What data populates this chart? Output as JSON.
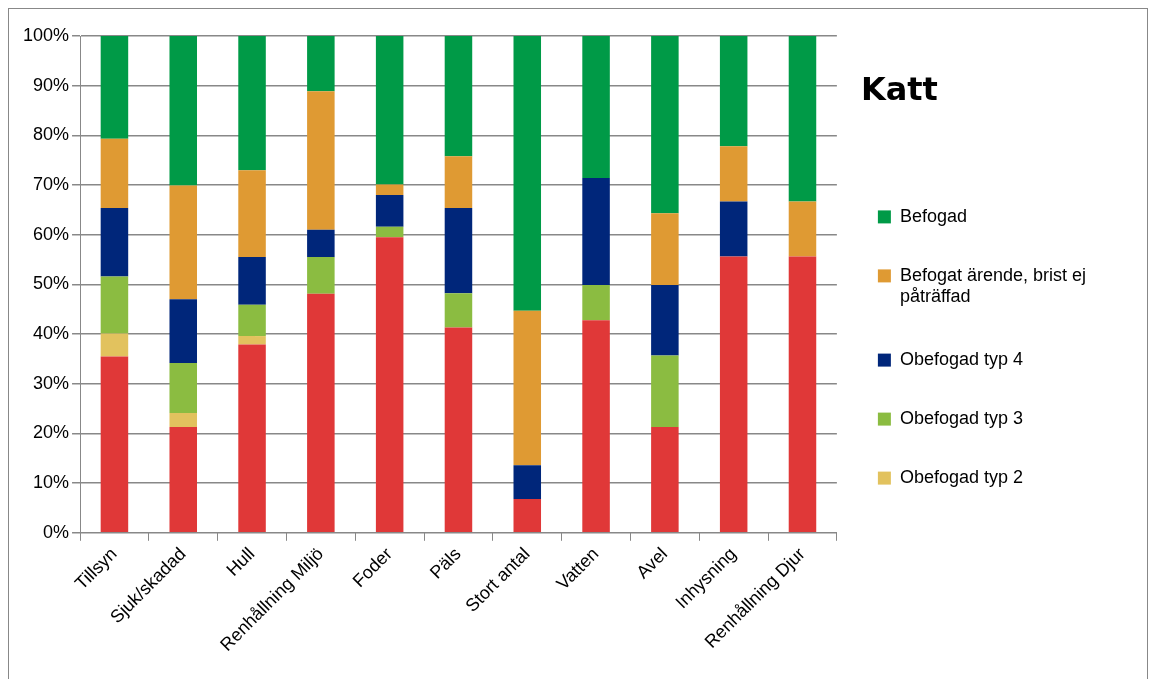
{
  "chart_data": {
    "type": "bar",
    "title": "Katt",
    "stacked": true,
    "categories": [
      "Tillsyn",
      "Sjuk/skadad",
      "Hull",
      "Renhållning Miljö",
      "Foder",
      "Päls",
      "Stort antal",
      "Vatten",
      "Avel",
      "Inhysning",
      "Renhållning Djur"
    ],
    "series": [
      {
        "color": "#e03838",
        "values": [
          35.5,
          21.3,
          37.9,
          48.1,
          59.5,
          41.3,
          6.8,
          42.8,
          21.3,
          55.6,
          55.6
        ]
      },
      {
        "name": "Obefogad typ 2",
        "color": "#e2c25e",
        "values": [
          4.6,
          2.8,
          1.7,
          0,
          0,
          0,
          0,
          0,
          0,
          0,
          0
        ]
      },
      {
        "name": "Obefogad typ 3",
        "color": "#8bbc41",
        "values": [
          11.5,
          10.1,
          6.3,
          7.4,
          2.1,
          6.9,
          0,
          7.1,
          14.4,
          0,
          0
        ]
      },
      {
        "name": "Obefogad typ 4",
        "color": "#00267a",
        "values": [
          13.8,
          12.8,
          9.6,
          5.5,
          6.4,
          17.2,
          6.8,
          21.5,
          14.2,
          11.1,
          0
        ]
      },
      {
        "name": "Befogat ärende, brist ej påträffad",
        "color": "#df9a33",
        "values": [
          13.9,
          22.9,
          17.5,
          27.9,
          2.1,
          10.4,
          31.1,
          0,
          14.4,
          11.1,
          11.1
        ]
      },
      {
        "name": "Befogad",
        "color": "#009a47",
        "values": [
          20.7,
          30.1,
          27.0,
          11.1,
          29.9,
          24.2,
          55.3,
          28.6,
          35.7,
          22.2,
          33.3
        ]
      }
    ],
    "ylim": [
      0,
      100
    ],
    "yticks": [
      {
        "value": 0,
        "label": "0%"
      },
      {
        "value": 10,
        "label": "10%"
      },
      {
        "value": 20,
        "label": "20%"
      },
      {
        "value": 30,
        "label": "30%"
      },
      {
        "value": 40,
        "label": "40%"
      },
      {
        "value": 50,
        "label": "50%"
      },
      {
        "value": 60,
        "label": "60%"
      },
      {
        "value": 70,
        "label": "70%"
      },
      {
        "value": 80,
        "label": "80%"
      },
      {
        "value": 90,
        "label": "90%"
      },
      {
        "value": 100,
        "label": "100%"
      }
    ],
    "grid": "y",
    "legend": "right"
  }
}
